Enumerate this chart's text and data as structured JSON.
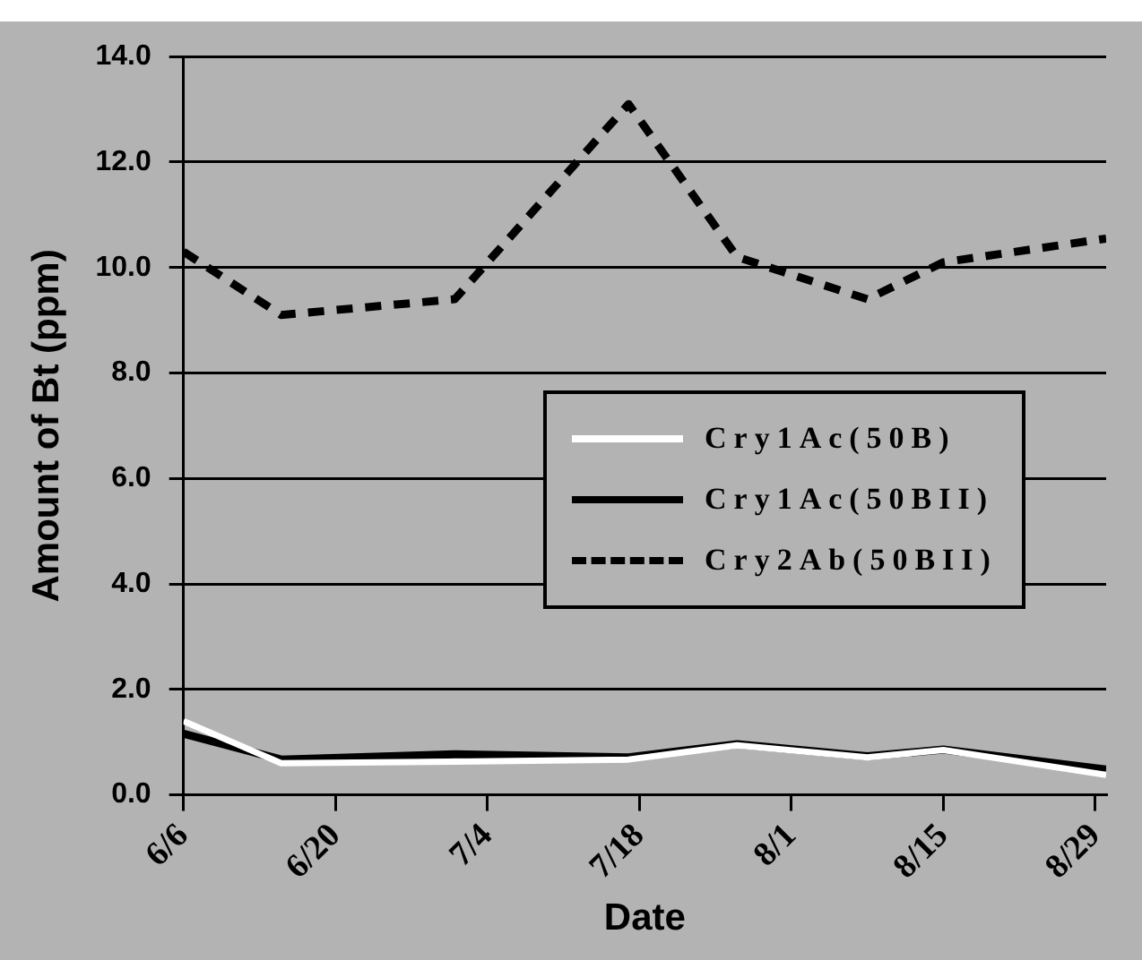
{
  "chart_data": {
    "type": "line",
    "xlabel": "Date",
    "ylabel": "Amount of Bt (ppm)",
    "x": [
      "--06-06",
      "--06-15",
      "--07-01",
      "--07-17",
      "--07-27",
      "--08-08",
      "--08-15",
      "--08-30"
    ],
    "series": [
      {
        "name": "Cry1Ac(50B)",
        "color": "#ffffff",
        "line_style": "solid",
        "values": [
          1.4,
          0.6,
          0.63,
          0.67,
          0.94,
          0.71,
          0.85,
          0.38
        ]
      },
      {
        "name": "Cry1Ac(50BII)",
        "color": "#000000",
        "line_style": "solid",
        "values": [
          1.16,
          0.67,
          0.77,
          0.71,
          0.96,
          0.73,
          0.86,
          0.48
        ]
      },
      {
        "name": "Cry2Ab(50BII)",
        "color": "#000000",
        "line_style": "dashed",
        "values": [
          10.3,
          9.1,
          9.4,
          13.1,
          10.2,
          9.4,
          10.1,
          10.55
        ]
      }
    ],
    "xlim": [
      "--06-06",
      "--08-30"
    ],
    "xticks": [
      {
        "value": "--06-06",
        "label": "6/6"
      },
      {
        "value": "--06-20",
        "label": "6/20"
      },
      {
        "value": "--07-04",
        "label": "7/4"
      },
      {
        "value": "--07-18",
        "label": "7/18"
      },
      {
        "value": "--08-01",
        "label": "8/1"
      },
      {
        "value": "--08-15",
        "label": "8/15"
      },
      {
        "value": "--08-29",
        "label": "8/29"
      }
    ],
    "ylim": [
      0,
      14
    ],
    "yticks": [
      {
        "value": 0,
        "label": "0.0"
      },
      {
        "value": 2,
        "label": "2.0"
      },
      {
        "value": 4,
        "label": "4.0"
      },
      {
        "value": 6,
        "label": "6.0"
      },
      {
        "value": 8,
        "label": "8.0"
      },
      {
        "value": 10,
        "label": "10.0"
      },
      {
        "value": 12,
        "label": "12.0"
      },
      {
        "value": 14,
        "label": "14.0"
      }
    ],
    "grid": "y",
    "legend": "right",
    "marker": "none"
  }
}
